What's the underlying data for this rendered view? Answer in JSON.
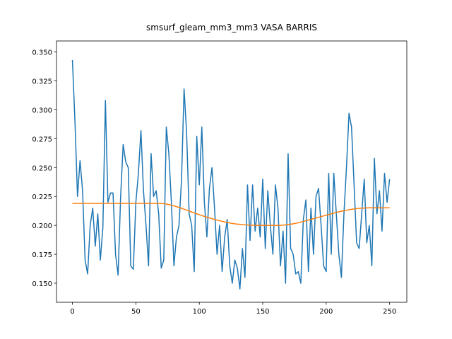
{
  "chart_data": {
    "type": "line",
    "title": "smsurf_gleam_mm3_mm3 VASA BARRIS",
    "x": [
      0,
      2,
      4,
      6,
      8,
      10,
      12,
      14,
      16,
      18,
      20,
      22,
      24,
      26,
      28,
      30,
      32,
      34,
      36,
      38,
      40,
      42,
      44,
      46,
      48,
      50,
      52,
      54,
      56,
      58,
      60,
      62,
      64,
      66,
      68,
      70,
      72,
      74,
      76,
      78,
      80,
      82,
      84,
      86,
      88,
      90,
      92,
      94,
      96,
      98,
      100,
      102,
      104,
      106,
      108,
      110,
      112,
      114,
      116,
      118,
      120,
      122,
      124,
      126,
      128,
      130,
      132,
      134,
      136,
      138,
      140,
      142,
      144,
      146,
      148,
      150,
      152,
      154,
      156,
      158,
      160,
      162,
      164,
      166,
      168,
      170,
      172,
      174,
      176,
      178,
      180,
      182,
      184,
      186,
      188,
      190,
      192,
      194,
      196,
      198,
      200,
      202,
      204,
      206,
      208,
      210,
      212,
      214,
      216,
      218,
      220,
      222,
      224,
      226,
      228,
      230,
      232,
      234,
      236,
      238,
      240,
      242,
      244,
      246,
      248,
      250
    ],
    "series": [
      {
        "color": "#1f77b4",
        "values": [
          0.343,
          0.29,
          0.225,
          0.256,
          0.23,
          0.17,
          0.158,
          0.2,
          0.215,
          0.182,
          0.21,
          0.17,
          0.198,
          0.308,
          0.22,
          0.228,
          0.228,
          0.175,
          0.157,
          0.225,
          0.27,
          0.255,
          0.25,
          0.165,
          0.162,
          0.22,
          0.245,
          0.282,
          0.23,
          0.2,
          0.165,
          0.262,
          0.225,
          0.23,
          0.21,
          0.163,
          0.17,
          0.285,
          0.262,
          0.22,
          0.165,
          0.19,
          0.2,
          0.24,
          0.318,
          0.28,
          0.21,
          0.2,
          0.16,
          0.277,
          0.235,
          0.285,
          0.22,
          0.19,
          0.232,
          0.25,
          0.215,
          0.175,
          0.2,
          0.16,
          0.19,
          0.205,
          0.165,
          0.15,
          0.17,
          0.163,
          0.145,
          0.18,
          0.155,
          0.235,
          0.187,
          0.235,
          0.195,
          0.215,
          0.19,
          0.24,
          0.18,
          0.23,
          0.2,
          0.175,
          0.235,
          0.215,
          0.165,
          0.195,
          0.15,
          0.262,
          0.18,
          0.175,
          0.158,
          0.16,
          0.15,
          0.205,
          0.222,
          0.16,
          0.215,
          0.175,
          0.225,
          0.232,
          0.2,
          0.165,
          0.16,
          0.245,
          0.175,
          0.245,
          0.21,
          0.175,
          0.155,
          0.21,
          0.25,
          0.297,
          0.285,
          0.235,
          0.185,
          0.18,
          0.21,
          0.24,
          0.185,
          0.2,
          0.165,
          0.258,
          0.21,
          0.23,
          0.195,
          0.245,
          0.22,
          0.24
        ]
      },
      {
        "color": "#ff7f0e",
        "values": [
          0.219,
          0.219,
          0.219,
          0.219,
          0.219,
          0.219,
          0.219,
          0.219,
          0.219,
          0.219,
          0.219,
          0.219,
          0.219,
          0.219,
          0.219,
          0.219,
          0.219,
          0.219,
          0.219,
          0.219,
          0.219,
          0.219,
          0.219,
          0.219,
          0.219,
          0.219,
          0.219,
          0.219,
          0.219,
          0.219,
          0.219,
          0.219,
          0.219,
          0.219,
          0.219,
          0.219,
          0.2188,
          0.2184,
          0.218,
          0.2175,
          0.217,
          0.2162,
          0.2155,
          0.2148,
          0.214,
          0.2132,
          0.2124,
          0.2116,
          0.2108,
          0.21,
          0.2092,
          0.2085,
          0.2078,
          0.2071,
          0.2064,
          0.2058,
          0.2052,
          0.2046,
          0.204,
          0.2035,
          0.203,
          0.2025,
          0.2021,
          0.2017,
          0.2014,
          0.2011,
          0.2009,
          0.2007,
          0.2005,
          0.2003,
          0.2002,
          0.2001,
          0.2,
          0.2,
          0.2,
          0.2,
          0.2,
          0.2,
          0.2,
          0.2,
          0.2,
          0.2,
          0.2001,
          0.2002,
          0.2004,
          0.2007,
          0.201,
          0.2014,
          0.2018,
          0.2023,
          0.2028,
          0.2034,
          0.204,
          0.2046,
          0.2052,
          0.2058,
          0.2064,
          0.207,
          0.2076,
          0.2082,
          0.2088,
          0.2094,
          0.21,
          0.2106,
          0.2112,
          0.2117,
          0.2122,
          0.2127,
          0.2131,
          0.2135,
          0.2139,
          0.2142,
          0.2145,
          0.2147,
          0.2149,
          0.215,
          0.2151,
          0.2152,
          0.2152,
          0.2152,
          0.2152,
          0.2152,
          0.2152,
          0.2152,
          0.2152,
          0.2152
        ]
      }
    ],
    "xlim": [
      -12.55,
      263.55
    ],
    "xticks": [
      0,
      50,
      100,
      150,
      200,
      250
    ],
    "ylim": [
      0.1335,
      0.3595
    ],
    "yticks": [
      {
        "value": 0.15,
        "label": "0.150"
      },
      {
        "value": 0.175,
        "label": "0.175"
      },
      {
        "value": 0.2,
        "label": "0.200"
      },
      {
        "value": 0.225,
        "label": "0.225"
      },
      {
        "value": 0.25,
        "label": "0.250"
      },
      {
        "value": 0.275,
        "label": "0.275"
      },
      {
        "value": 0.3,
        "label": "0.300"
      },
      {
        "value": 0.325,
        "label": "0.325"
      },
      {
        "value": 0.35,
        "label": "0.350"
      }
    ],
    "grid": false
  }
}
